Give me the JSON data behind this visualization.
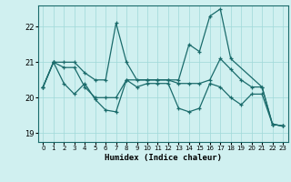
{
  "xlabel": "Humidex (Indice chaleur)",
  "xlim": [
    -0.5,
    23.5
  ],
  "ylim": [
    18.75,
    22.6
  ],
  "yticks": [
    19,
    20,
    21,
    22
  ],
  "xticks": [
    0,
    1,
    2,
    3,
    4,
    5,
    6,
    7,
    8,
    9,
    10,
    11,
    12,
    13,
    14,
    15,
    16,
    17,
    18,
    19,
    20,
    21,
    22,
    23
  ],
  "bg_color": "#d0f0f0",
  "line_color": "#1a6b6b",
  "series": [
    {
      "x": [
        0,
        1,
        2,
        3,
        4,
        5,
        6,
        7,
        8,
        9,
        10,
        11,
        12,
        13,
        14,
        15,
        16,
        17,
        18,
        21,
        22,
        23
      ],
      "y": [
        20.3,
        21.0,
        21.0,
        21.0,
        20.7,
        20.5,
        20.5,
        22.1,
        21.0,
        20.5,
        20.5,
        20.5,
        20.5,
        20.5,
        21.5,
        21.3,
        22.3,
        22.5,
        21.1,
        20.3,
        19.25,
        19.2
      ]
    },
    {
      "x": [
        0,
        1,
        2,
        3,
        4,
        5,
        6,
        7,
        8,
        10,
        11,
        12,
        13,
        14,
        15,
        16,
        17,
        18,
        19,
        20,
        21,
        22,
        23
      ],
      "y": [
        20.3,
        21.0,
        20.85,
        20.85,
        20.3,
        20.0,
        20.0,
        20.0,
        20.5,
        20.5,
        20.5,
        20.5,
        20.4,
        20.4,
        20.4,
        20.5,
        21.1,
        20.8,
        20.5,
        20.3,
        20.3,
        19.25,
        19.2
      ]
    },
    {
      "x": [
        0,
        1,
        2,
        3,
        4,
        5,
        6,
        7,
        8,
        9,
        10,
        11,
        12,
        13,
        14,
        15,
        16,
        17,
        18,
        19,
        20,
        21,
        22,
        23
      ],
      "y": [
        20.3,
        21.0,
        20.4,
        20.1,
        20.4,
        19.95,
        19.65,
        19.6,
        20.5,
        20.3,
        20.4,
        20.4,
        20.4,
        19.7,
        19.6,
        19.7,
        20.4,
        20.3,
        20.0,
        19.8,
        20.1,
        20.1,
        19.25,
        19.2
      ]
    }
  ]
}
